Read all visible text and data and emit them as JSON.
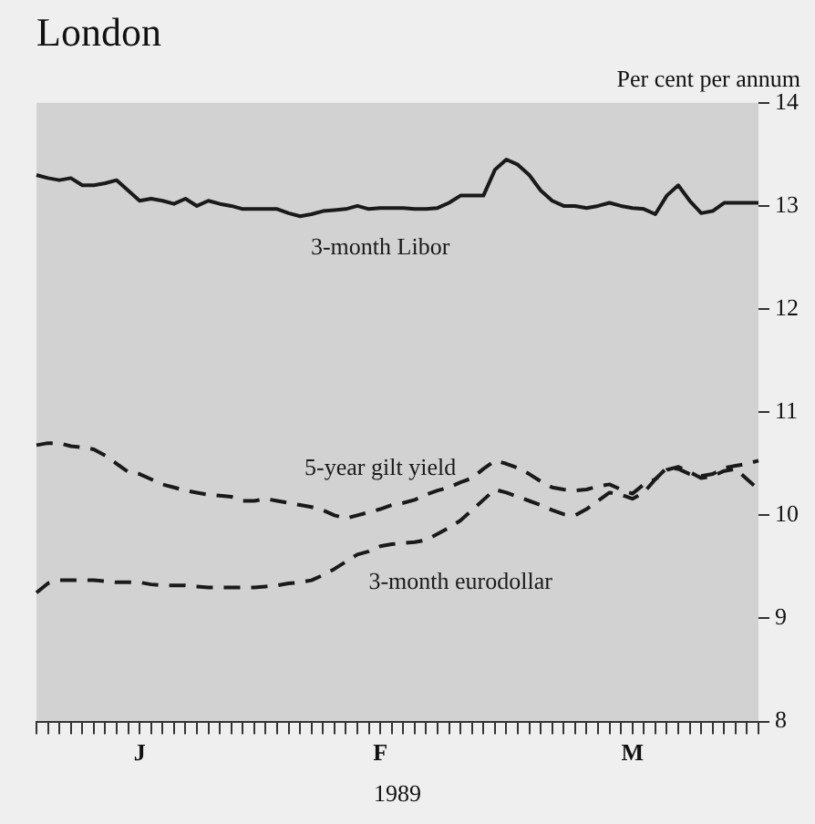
{
  "chart_data": {
    "type": "line",
    "title": "London",
    "ylabel": "Per cent per annum",
    "xlabel": "1989",
    "categories": [
      null,
      null,
      null,
      null,
      null,
      null,
      null,
      null,
      null,
      "J",
      null,
      null,
      null,
      null,
      null,
      null,
      null,
      null,
      null,
      null,
      null,
      null,
      null,
      null,
      null,
      null,
      null,
      null,
      null,
      null,
      "F",
      null,
      null,
      null,
      null,
      null,
      null,
      null,
      null,
      null,
      null,
      null,
      null,
      null,
      null,
      null,
      null,
      null,
      null,
      null,
      null,
      null,
      "M",
      null,
      null,
      null,
      null,
      null,
      null,
      null,
      null,
      null,
      null,
      null
    ],
    "series": [
      {
        "name": "3-month Libor",
        "color": "#1a1a1a",
        "line_style": "solid",
        "values": [
          13.3,
          13.27,
          13.25,
          13.27,
          13.2,
          13.2,
          13.22,
          13.25,
          13.15,
          13.05,
          13.07,
          13.05,
          13.02,
          13.07,
          13.0,
          13.05,
          13.02,
          13.0,
          12.97,
          12.97,
          12.97,
          12.97,
          12.93,
          12.9,
          12.92,
          12.95,
          12.96,
          12.97,
          13.0,
          12.97,
          12.98,
          12.98,
          12.98,
          12.97,
          12.97,
          12.98,
          13.03,
          13.1,
          13.1,
          13.1,
          13.35,
          13.45,
          13.4,
          13.3,
          13.15,
          13.05,
          13.0,
          13.0,
          12.98,
          13.0,
          13.03,
          13.0,
          12.98,
          12.97,
          12.92,
          13.1,
          13.2,
          13.05,
          12.93,
          12.95,
          13.03,
          13.03,
          13.03,
          13.03
        ]
      },
      {
        "name": "5-year gilt yield",
        "color": "#1a1a1a",
        "line_style": "dashed",
        "values": [
          10.68,
          10.7,
          10.7,
          10.67,
          10.66,
          10.64,
          10.58,
          10.5,
          10.42,
          10.4,
          10.35,
          10.3,
          10.27,
          10.24,
          10.22,
          10.2,
          10.19,
          10.18,
          10.14,
          10.14,
          10.16,
          10.14,
          10.12,
          10.1,
          10.08,
          10.05,
          10.0,
          9.97,
          10.0,
          10.03,
          10.06,
          10.1,
          10.12,
          10.15,
          10.2,
          10.24,
          10.27,
          10.32,
          10.36,
          10.45,
          10.53,
          10.5,
          10.46,
          10.4,
          10.33,
          10.27,
          10.25,
          10.24,
          10.25,
          10.28,
          10.3,
          10.25,
          10.21,
          10.3,
          10.35,
          10.46,
          10.45,
          10.4,
          10.38,
          10.4,
          10.46,
          10.48,
          10.5,
          10.53
        ]
      },
      {
        "name": "3-month eurodollar",
        "color": "#1a1a1a",
        "line_style": "dashed",
        "values": [
          9.25,
          9.34,
          9.37,
          9.37,
          9.37,
          9.37,
          9.36,
          9.35,
          9.35,
          9.35,
          9.33,
          9.32,
          9.32,
          9.32,
          9.31,
          9.3,
          9.3,
          9.3,
          9.3,
          9.3,
          9.31,
          9.32,
          9.34,
          9.35,
          9.37,
          9.42,
          9.48,
          9.55,
          9.62,
          9.65,
          9.7,
          9.72,
          9.73,
          9.74,
          9.76,
          9.82,
          9.88,
          9.95,
          10.05,
          10.15,
          10.25,
          10.22,
          10.18,
          10.14,
          10.1,
          10.05,
          10.01,
          10.0,
          10.06,
          10.14,
          10.22,
          10.2,
          10.16,
          10.22,
          10.35,
          10.44,
          10.47,
          10.42,
          10.36,
          10.38,
          10.43,
          10.45,
          10.35,
          10.25
        ]
      }
    ],
    "ylim": [
      8,
      14
    ],
    "yticks": [
      8,
      9,
      10,
      11,
      12,
      13,
      14
    ],
    "grid": false,
    "legend": false,
    "marker": "none"
  }
}
